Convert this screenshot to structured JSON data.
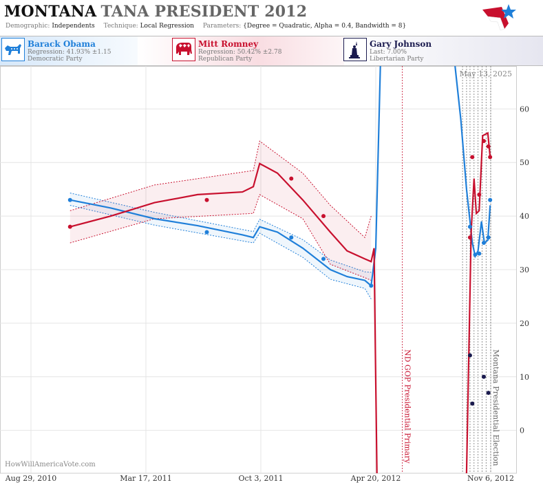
{
  "header": {
    "state": "MONTANA",
    "race": "TANA PRESIDENT 2012",
    "demographic_label": "Demographic:",
    "demographic_value": "Independents",
    "technique_label": "Technique:",
    "technique_value": "Local Regression",
    "parameters_label": "Parameters:",
    "parameters_value": "{Degree = Quadratic, Alpha = 0.4, Bandwidth = 8}"
  },
  "candidates": [
    {
      "name": "Barack Obama",
      "stat": "Regression: 41.93% ±1.15",
      "party": "Democratic Party",
      "color": "#1f7fd9",
      "icon": "donkey-icon"
    },
    {
      "name": "Mitt Romney",
      "stat": "Regression: 50.42% ±2.78",
      "party": "Republican Party",
      "color": "#c8102e",
      "icon": "elephant-icon"
    },
    {
      "name": "Gary Johnson",
      "stat": "Last: 7.00%",
      "party": "Libertarian Party",
      "color": "#1a1a4e",
      "icon": "statue-of-liberty-icon"
    }
  ],
  "chart_data": {
    "type": "line",
    "date_label": "May 13, 2025",
    "watermark": "HowWillAmericaVote.com",
    "x_ticks": [
      "Aug 29, 2010",
      "Mar 17, 2011",
      "Oct 3, 2011",
      "Apr 20, 2012",
      "Nov 6, 2012"
    ],
    "x_range": [
      "2010-08-29",
      "2012-11-06"
    ],
    "y_ticks": [
      0,
      10,
      20,
      30,
      40,
      50,
      60
    ],
    "ylim": [
      -8,
      68
    ],
    "events": [
      {
        "label": "ND GOP Presidential Primary",
        "date": "2012-06-05",
        "color": "#c8102e"
      },
      {
        "label": "Montana Presidential Election",
        "date": "2012-11-06",
        "color": "#666666"
      }
    ],
    "poll_dates": [
      "2012-09-18",
      "2012-09-25",
      "2012-10-01",
      "2012-10-08",
      "2012-10-15",
      "2012-10-22",
      "2012-10-29"
    ],
    "series": [
      {
        "name": "Barack Obama",
        "color": "#1f7fd9",
        "trend": [
          [
            "2010-11-05",
            43
          ],
          [
            "2011-01-15",
            41.5
          ],
          [
            "2011-04-01",
            39.5
          ],
          [
            "2011-06-15",
            38.2
          ],
          [
            "2011-09-01",
            36.5
          ],
          [
            "2011-09-20",
            36
          ],
          [
            "2011-10-01",
            38
          ],
          [
            "2011-11-01",
            37
          ],
          [
            "2011-12-15",
            34
          ],
          [
            "2012-02-01",
            30
          ],
          [
            "2012-03-01",
            28.7
          ],
          [
            "2012-04-01",
            28
          ],
          [
            "2012-04-12",
            27
          ],
          [
            "2012-04-20",
            34
          ],
          [
            "2012-04-28",
            70
          ]
        ],
        "lower": [
          [
            "2010-11-05",
            42
          ],
          [
            "2011-04-01",
            38.3
          ],
          [
            "2011-09-20",
            35
          ],
          [
            "2011-10-01",
            36.8
          ],
          [
            "2011-12-15",
            32.3
          ],
          [
            "2012-02-01",
            28.2
          ],
          [
            "2012-04-01",
            26.5
          ],
          [
            "2012-04-12",
            24.5
          ]
        ],
        "upper": [
          [
            "2010-11-05",
            44.3
          ],
          [
            "2011-04-01",
            40.7
          ],
          [
            "2011-09-20",
            37.1
          ],
          [
            "2011-10-01",
            39.4
          ],
          [
            "2011-12-15",
            35.6
          ],
          [
            "2012-02-01",
            31.8
          ],
          [
            "2012-04-01",
            29.6
          ],
          [
            "2012-04-12",
            29.5
          ]
        ],
        "points": [
          [
            "2010-11-05",
            43
          ],
          [
            "2011-07-01",
            37
          ],
          [
            "2011-11-25",
            36
          ],
          [
            "2012-01-20",
            32
          ],
          [
            "2012-04-12",
            27
          ],
          [
            "2012-10-01",
            38
          ],
          [
            "2012-10-10",
            32.8
          ],
          [
            "2012-10-17",
            33
          ],
          [
            "2012-10-25",
            35
          ],
          [
            "2012-11-02",
            36
          ],
          [
            "2012-11-05",
            43
          ]
        ],
        "late_trend": [
          [
            "2012-09-05",
            70
          ],
          [
            "2012-09-15",
            58
          ],
          [
            "2012-09-25",
            45
          ],
          [
            "2012-10-05",
            35
          ],
          [
            "2012-10-10",
            32.5
          ],
          [
            "2012-10-15",
            33.5
          ],
          [
            "2012-10-21",
            39
          ],
          [
            "2012-10-26",
            35
          ],
          [
            "2012-11-01",
            35.5
          ],
          [
            "2012-11-05",
            42
          ]
        ]
      },
      {
        "name": "Mitt Romney",
        "color": "#c8102e",
        "trend": [
          [
            "2010-11-05",
            38
          ],
          [
            "2011-01-15",
            40
          ],
          [
            "2011-04-01",
            42.5
          ],
          [
            "2011-06-15",
            44
          ],
          [
            "2011-09-01",
            44.5
          ],
          [
            "2011-09-20",
            45.5
          ],
          [
            "2011-10-01",
            49.8
          ],
          [
            "2011-11-01",
            48
          ],
          [
            "2011-12-15",
            43
          ],
          [
            "2012-02-01",
            37
          ],
          [
            "2012-03-01",
            33.5
          ],
          [
            "2012-04-01",
            32
          ],
          [
            "2012-04-12",
            31.5
          ],
          [
            "2012-04-17",
            34
          ],
          [
            "2012-04-22",
            -8
          ]
        ],
        "lower": [
          [
            "2010-11-05",
            35
          ],
          [
            "2011-04-01",
            39.5
          ],
          [
            "2011-09-20",
            40.5
          ],
          [
            "2011-10-01",
            44
          ],
          [
            "2011-12-15",
            39.5
          ],
          [
            "2012-02-01",
            31
          ],
          [
            "2012-04-01",
            28.5
          ],
          [
            "2012-04-12",
            28
          ]
        ],
        "upper": [
          [
            "2010-11-05",
            41
          ],
          [
            "2011-04-01",
            45.8
          ],
          [
            "2011-09-20",
            48.5
          ],
          [
            "2011-10-01",
            54
          ],
          [
            "2011-12-15",
            48
          ],
          [
            "2012-02-01",
            42
          ],
          [
            "2012-04-01",
            36
          ],
          [
            "2012-04-12",
            40
          ]
        ],
        "points": [
          [
            "2010-11-05",
            38
          ],
          [
            "2011-07-01",
            43
          ],
          [
            "2011-11-25",
            47
          ],
          [
            "2012-01-20",
            40
          ],
          [
            "2012-10-01",
            36
          ],
          [
            "2012-10-05",
            51
          ],
          [
            "2012-10-17",
            44
          ],
          [
            "2012-10-25",
            54
          ],
          [
            "2012-11-02",
            53
          ],
          [
            "2012-11-05",
            51
          ]
        ],
        "late_trend": [
          [
            "2012-09-25",
            -8
          ],
          [
            "2012-10-03",
            37
          ],
          [
            "2012-10-08",
            47
          ],
          [
            "2012-10-12",
            40.5
          ],
          [
            "2012-10-17",
            41
          ],
          [
            "2012-10-23",
            55
          ],
          [
            "2012-11-01",
            55.5
          ],
          [
            "2012-11-05",
            51
          ]
        ]
      },
      {
        "name": "Gary Johnson",
        "color": "#1a1a4e",
        "points": [
          [
            "2012-10-01",
            14
          ],
          [
            "2012-10-05",
            5
          ],
          [
            "2012-10-25",
            10
          ],
          [
            "2012-11-02",
            7
          ]
        ]
      }
    ]
  }
}
